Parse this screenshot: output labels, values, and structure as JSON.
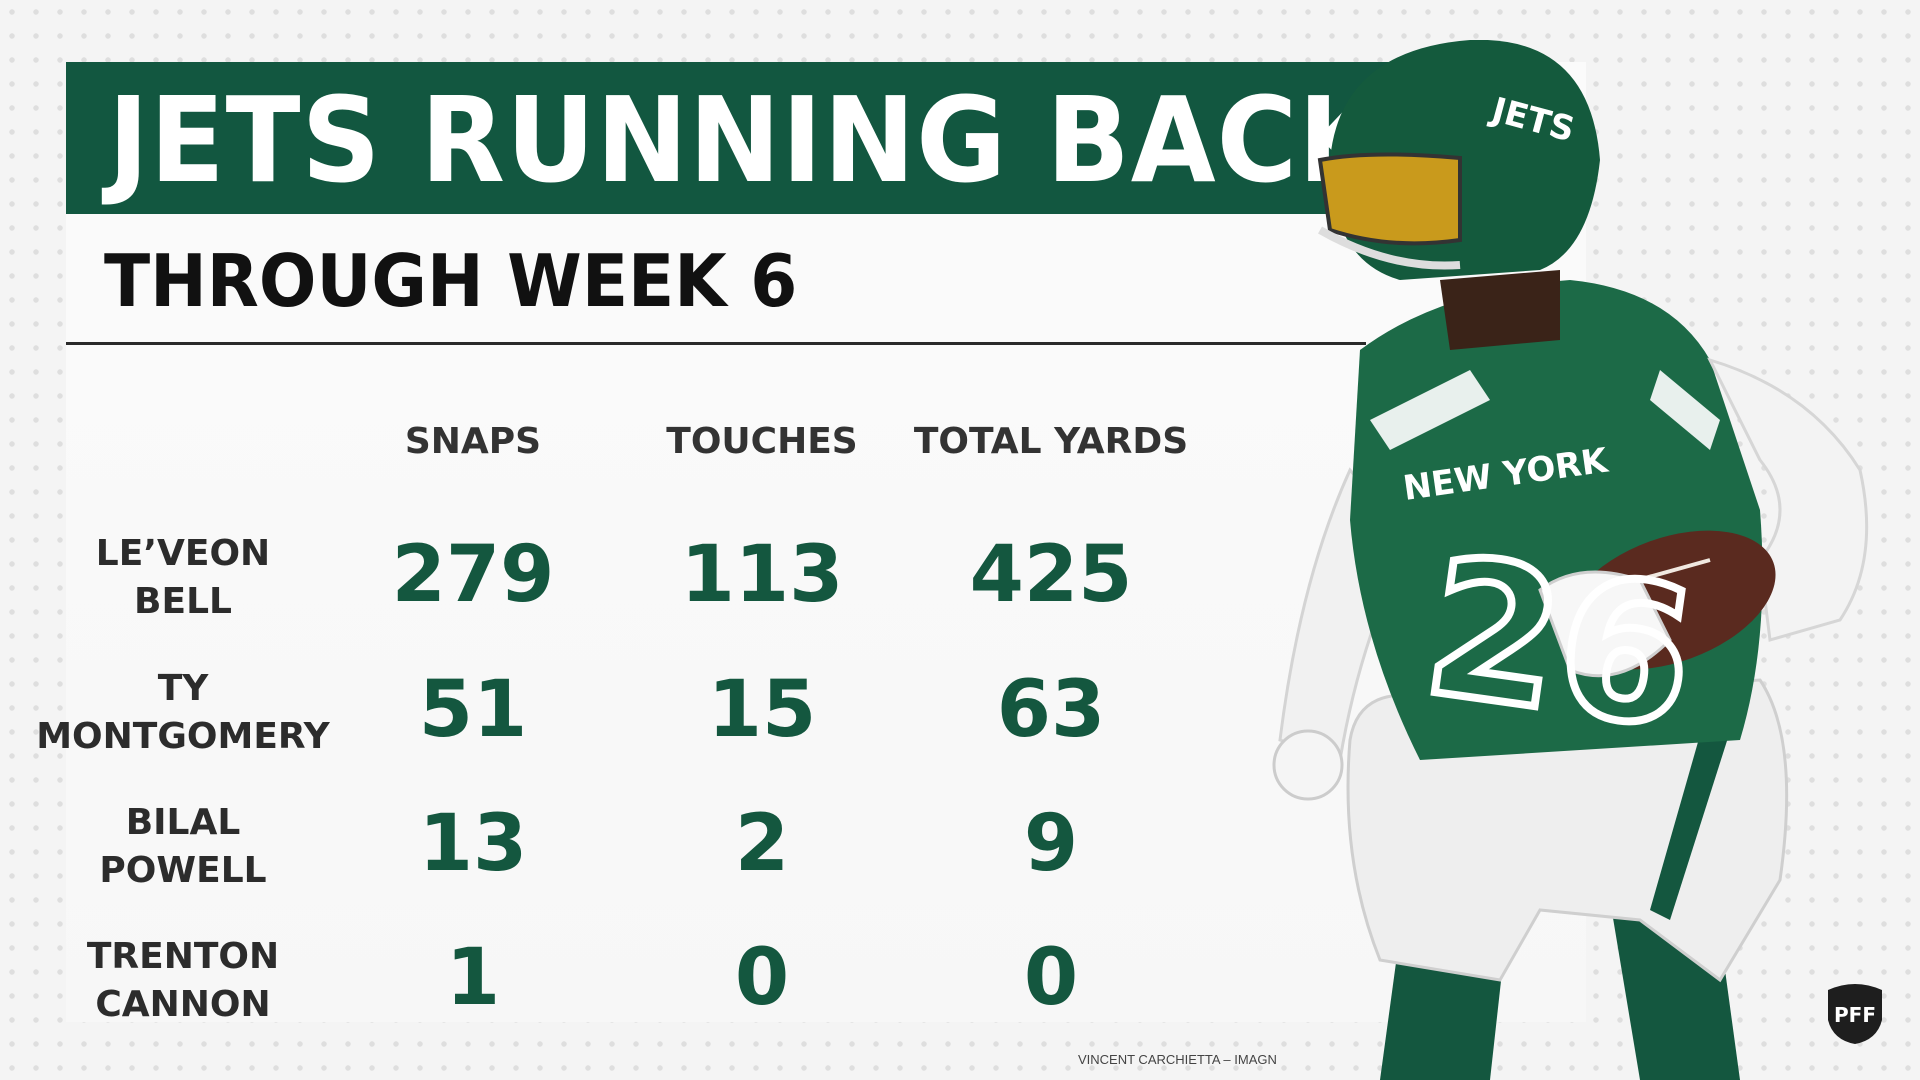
{
  "title": "JETS RUNNING BACKS",
  "subtitle": "THROUGH WEEK 6",
  "columns": [
    "SNAPS",
    "TOUCHES",
    "TOTAL YARDS"
  ],
  "rows": [
    {
      "name_line1": "LE’VEON",
      "name_line2": "BELL",
      "snaps": "279",
      "touches": "113",
      "total_yards": "425"
    },
    {
      "name_line1": "TY",
      "name_line2": "MONTGOMERY",
      "snaps": "51",
      "touches": "15",
      "total_yards": "63"
    },
    {
      "name_line1": "BILAL",
      "name_line2": "POWELL",
      "snaps": "13",
      "touches": "2",
      "total_yards": "9"
    },
    {
      "name_line1": "TRENTON",
      "name_line2": "CANNON",
      "snaps": "1",
      "touches": "0",
      "total_yards": "0"
    }
  ],
  "player_image": {
    "helmet_text": "JETS",
    "jersey_text": "NEW YORK",
    "jersey_number": "26"
  },
  "photo_credit": "VINCENT CARCHIETTA – IMAGN",
  "logo": {
    "text": "PFF"
  },
  "colors": {
    "jets_green": "#125740",
    "value_green": "#14573f",
    "text_dark": "#111111",
    "background": "#f4f4f4"
  }
}
